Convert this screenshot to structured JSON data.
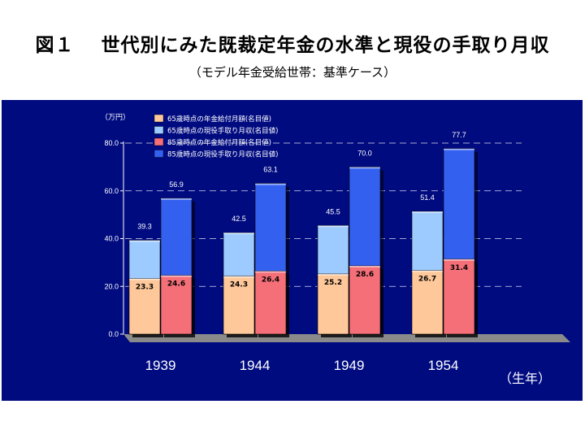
{
  "title": "図１　 世代別にみた既裁定年金の水準と現役の手取り月収",
  "subtitle": "（モデル年金受給世帯：基準ケース）",
  "chart_data": {
    "type": "bar",
    "unit_label": "（万円）",
    "x_unit_label": "（生年）",
    "categories": [
      "1939",
      "1944",
      "1949",
      "1954"
    ],
    "ylim": [
      0,
      80
    ],
    "y_ticks": [
      "0.0",
      "20.0",
      "40.0",
      "60.0",
      "80.0"
    ],
    "y_tick_values": [
      0,
      20,
      40,
      60,
      80
    ],
    "legend_position": "top-left",
    "series": [
      {
        "name": "65歳時点の年金給付月額(名目値)",
        "values": [
          23.3,
          24.3,
          25.2,
          26.7
        ],
        "labels": [
          "23.3",
          "24.3",
          "25.2",
          "26.7"
        ],
        "color": "#ffc89a",
        "group": 0
      },
      {
        "name": "65歳時点の現役手取り月収(名目値)",
        "values": [
          39.3,
          42.5,
          45.5,
          51.4
        ],
        "labels": [
          "39.3",
          "42.5",
          "45.5",
          "51.4"
        ],
        "color": "#9ecbff",
        "group": 0
      },
      {
        "name": "85歳時点の年金給付月額(名目値)",
        "values": [
          24.6,
          26.4,
          28.6,
          31.4
        ],
        "labels": [
          "24.6",
          "26.4",
          "28.6",
          "31.4"
        ],
        "color": "#f56f78",
        "group": 1
      },
      {
        "name": "85歳時点の現役手取り月収(名目値)",
        "values": [
          56.9,
          63.1,
          70.0,
          77.7
        ],
        "labels": [
          "56.9",
          "63.1",
          "70.0",
          "77.7"
        ],
        "color": "#3460f0",
        "group": 1
      }
    ]
  }
}
